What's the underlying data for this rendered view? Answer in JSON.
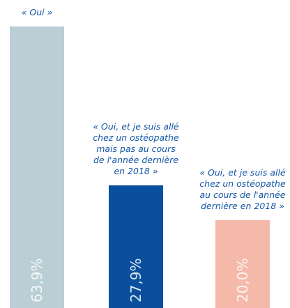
{
  "chart_data": {
    "type": "bar",
    "categories": [
      "« Oui »",
      "« Oui, et je suis allé chez un ostéopathe mais pas au cours de l'année dernière en 2018 »",
      "« Oui, et je suis allé chez un ostéopathe au cours de l'année dernière en 2018 »"
    ],
    "values": [
      63.9,
      27.9,
      20.0
    ],
    "value_labels": [
      "63,9%",
      "27,9%",
      "20,0%"
    ],
    "colors": [
      "#b9ced5",
      "#0a4f9e",
      "#f5b9a9"
    ]
  }
}
